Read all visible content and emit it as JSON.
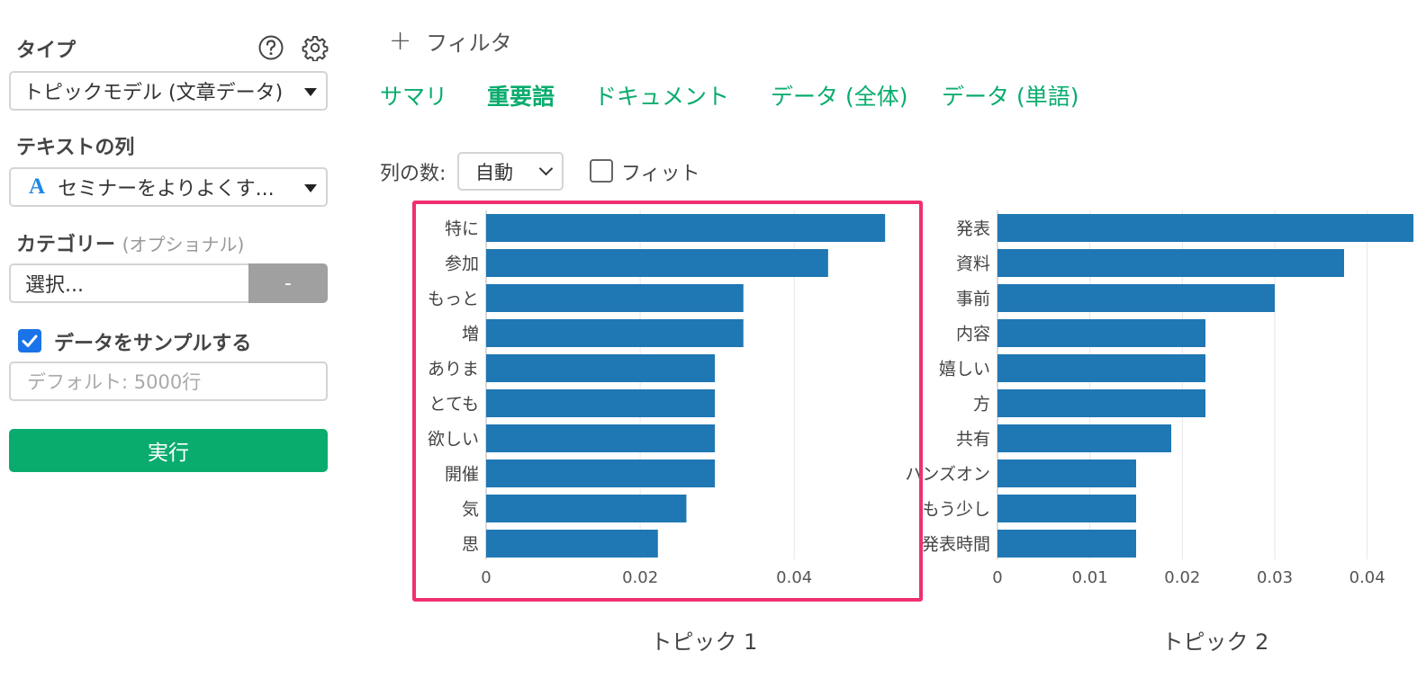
{
  "sidebar": {
    "type_label": "タイプ",
    "type_value": "トピックモデル (文章データ)",
    "text_col_label": "テキストの列",
    "text_col_type_icon": "A",
    "text_col_value": "セミナーをよりよくす...",
    "category_label": "カテゴリー",
    "category_optional": "(オプショナル)",
    "category_placeholder": "選択...",
    "category_clear_label": "-",
    "sample_label": "データをサンプルする",
    "sample_checked": true,
    "sample_placeholder": "デフォルト: 5000行",
    "run_label": "実行"
  },
  "main": {
    "filter_label": "フィルタ",
    "tabs": [
      {
        "label": "サマリ",
        "active": false
      },
      {
        "label": "重要語",
        "active": true
      },
      {
        "label": "ドキュメント",
        "active": false
      },
      {
        "label": "データ (全体)",
        "active": false
      },
      {
        "label": "データ (単語)",
        "active": false
      }
    ],
    "columns_label": "列の数:",
    "columns_value": "自動",
    "fit_label": "フィット",
    "fit_checked": false
  },
  "colors": {
    "accent": "#0aac6e",
    "bar": "#1f77b4",
    "highlight": "#f0306e"
  },
  "chart_data": [
    {
      "type": "bar",
      "orientation": "horizontal",
      "title": "トピック 1",
      "categories": [
        "特に",
        "参加",
        "もっと",
        "増",
        "ありま",
        "とても",
        "欲しい",
        "開催",
        "気",
        "思"
      ],
      "values": [
        0.0518,
        0.0444,
        0.0334,
        0.0334,
        0.0297,
        0.0297,
        0.0297,
        0.0297,
        0.026,
        0.0223
      ],
      "xticks": [
        "0",
        "0.02",
        "0.04"
      ],
      "xlim": [
        0,
        0.054
      ]
    },
    {
      "type": "bar",
      "orientation": "horizontal",
      "title": "トピック 2",
      "categories": [
        "発表",
        "資料",
        "事前",
        "内容",
        "嬉しい",
        "方",
        "共有",
        "ハンズオン",
        "もう少し",
        "発表時間"
      ],
      "values": [
        0.045,
        0.0375,
        0.03,
        0.0225,
        0.0225,
        0.0225,
        0.0188,
        0.015,
        0.015,
        0.015
      ],
      "xticks": [
        "0",
        "0.01",
        "0.02",
        "0.03",
        "0.04"
      ],
      "xlim": [
        0,
        0.045
      ]
    }
  ]
}
